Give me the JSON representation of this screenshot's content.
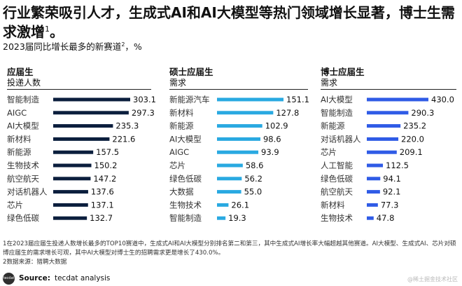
{
  "headline": {
    "text": "行业繁荣吸引人才，生成式AI和AI大模型等热门领域增长显著，博士生需求激增",
    "footnote_mark": "1",
    "end": "。"
  },
  "subtitle": {
    "text": "2023届同比增长最多的新赛道",
    "mark": "2",
    "unit": "，%"
  },
  "colors": {
    "panel_1": "#0b1e3d",
    "panel_2": "#29a9e1",
    "panel_3": "#2f5be6"
  },
  "chart_data": [
    {
      "type": "bar",
      "orientation": "horizontal",
      "title": "应届生",
      "subtitle": "投递人数",
      "categories": [
        "智能制造",
        "AIGC",
        "AI大模型",
        "新材料",
        "新能源",
        "生物技术",
        "航空航天",
        "对话机器人",
        "芯片",
        "绿色低碳"
      ],
      "values": [
        303.1,
        297.3,
        235.3,
        221.6,
        157.5,
        150.2,
        147.2,
        137.6,
        137.1,
        132.7
      ],
      "xlim": [
        0,
        303.1
      ]
    },
    {
      "type": "bar",
      "orientation": "horizontal",
      "title": "硕士应届生",
      "subtitle": "需求",
      "categories": [
        "新能源汽车",
        "新材料",
        "新能源",
        "AI大模型",
        "AIGC",
        "芯片",
        "绿色低碳",
        "大数据",
        "生物技术",
        "智能制造"
      ],
      "values": [
        151.1,
        127.8,
        102.9,
        98.6,
        93.9,
        58.6,
        56.2,
        55.0,
        26.1,
        19.3
      ],
      "xlim": [
        0,
        151.1
      ]
    },
    {
      "type": "bar",
      "orientation": "horizontal",
      "title": "博士应届生",
      "subtitle": "需求",
      "categories": [
        "AI大模型",
        "智能制造",
        "新能源",
        "对话机器人",
        "芯片",
        "人工智能",
        "绿色低碳",
        "航空航天",
        "新材料",
        "生物技术"
      ],
      "values": [
        430.0,
        290.3,
        235.2,
        220.0,
        209.1,
        112.5,
        94.1,
        92.1,
        77.3,
        47.8
      ],
      "xlim": [
        0,
        430.0
      ]
    }
  ],
  "footnotes": {
    "line1": "1在2023届应届生投递人数增长最多的TOP10赛道中，生成式AI和AI大模型分别排名第二和第三，其中生成式AI增长率大幅超越其他赛道。AI大模型、生成式AI、芯片对硕博应届生的需求增长可观，其中AI大模型对博士生的招聘需求更是增长了430.0%。",
    "line2": "2数据来源：猎聘大数据"
  },
  "source": {
    "logo_text": "tecdat",
    "label": "Source:",
    "text": "tecdat analysis"
  },
  "watermark": "@稀土掘金技术社区"
}
